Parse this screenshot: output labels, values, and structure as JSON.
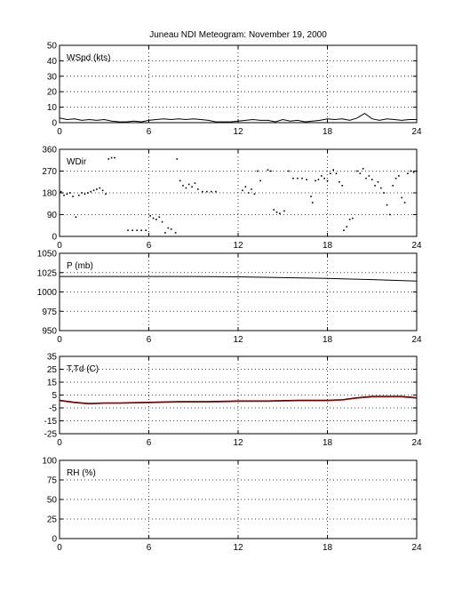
{
  "title": "Juneau NDI Meteogram:  November 19, 2000",
  "chart_data": [
    {
      "type": "line",
      "label": "WSpd (kts)",
      "ylim": [
        0,
        50
      ],
      "yticks": [
        0,
        10,
        20,
        30,
        40,
        50
      ],
      "xlim": [
        0,
        24
      ],
      "xticks": [
        0,
        6,
        12,
        18,
        24
      ],
      "grid": true,
      "series": [
        {
          "color": "#000000",
          "x": [
            0,
            0.5,
            1,
            1.5,
            2,
            2.5,
            3,
            3.5,
            4,
            4.5,
            5,
            5.5,
            6,
            6.5,
            7,
            7.5,
            8,
            8.5,
            9,
            9.5,
            10,
            10.5,
            11,
            11.5,
            12,
            12.5,
            13,
            13.5,
            14,
            14.5,
            15,
            15.5,
            16,
            16.5,
            17,
            17.5,
            18,
            18.5,
            19,
            19.5,
            20,
            20.5,
            21,
            21.5,
            22,
            22.5,
            23,
            23.5,
            24
          ],
          "values": [
            3,
            2,
            2.5,
            1.5,
            2,
            1.5,
            2,
            1,
            0.5,
            0.5,
            1,
            0.5,
            1.5,
            2,
            2.5,
            2,
            2.5,
            2,
            2.5,
            2,
            1.5,
            0.5,
            0.5,
            0.5,
            1,
            1.5,
            2,
            1.5,
            1.5,
            0.5,
            2,
            1,
            1.5,
            0.5,
            1,
            1.5,
            2.5,
            2,
            2.5,
            1.5,
            3,
            6,
            2.5,
            1.5,
            2.5,
            2,
            1.5,
            2,
            2
          ]
        }
      ]
    },
    {
      "type": "scatter",
      "label": "WDir",
      "ylim": [
        0,
        360
      ],
      "yticks": [
        0,
        90,
        180,
        270,
        360
      ],
      "xlim": [
        0,
        24
      ],
      "xticks": [
        0,
        6,
        12,
        18,
        24
      ],
      "grid": true,
      "series": [
        {
          "color": "#000000",
          "x": [
            0.1,
            0.3,
            0.5,
            0.7,
            0.9,
            1.1,
            1.3,
            1.5,
            1.7,
            1.9,
            2.1,
            2.3,
            2.5,
            2.7,
            2.9,
            3.1,
            3.3,
            3.5,
            3.7,
            4.6,
            4.9,
            5.2,
            5.5,
            5.8,
            6.1,
            6.3,
            6.5,
            6.7,
            6.9,
            7.1,
            7.3,
            7.5,
            7.8,
            7.9,
            8.1,
            8.3,
            8.5,
            8.7,
            8.9,
            9.1,
            9.3,
            9.6,
            9.9,
            10.2,
            10.5,
            12.3,
            12.5,
            12.7,
            12.9,
            13.1,
            13.3,
            13.5,
            14,
            14.2,
            14.4,
            14.6,
            14.8,
            15.1,
            15.4,
            15.7,
            16.0,
            16.3,
            16.6,
            16.9,
            17.0,
            17.2,
            17.4,
            17.6,
            17.8,
            18.0,
            18.2,
            18.4,
            18.6,
            18.8,
            19.0,
            19.1,
            19.3,
            19.5,
            19.7,
            20.0,
            20.2,
            20.4,
            20.6,
            20.8,
            21.0,
            21.2,
            21.4,
            21.6,
            21.8,
            22.0,
            22.2,
            22.4,
            22.6,
            22.8,
            23.0,
            23.2,
            23.4,
            23.6,
            23.8,
            24.0
          ],
          "values": [
            185,
            170,
            175,
            180,
            165,
            80,
            170,
            180,
            175,
            180,
            185,
            190,
            195,
            200,
            190,
            175,
            320,
            325,
            325,
            25,
            25,
            25,
            25,
            25,
            85,
            75,
            70,
            80,
            60,
            15,
            35,
            30,
            15,
            320,
            230,
            210,
            200,
            215,
            205,
            220,
            195,
            185,
            185,
            185,
            185,
            190,
            205,
            180,
            195,
            175,
            270,
            230,
            275,
            270,
            110,
            100,
            95,
            105,
            270,
            240,
            240,
            240,
            235,
            165,
            140,
            230,
            235,
            250,
            240,
            230,
            260,
            275,
            260,
            225,
            210,
            25,
            40,
            70,
            75,
            270,
            260,
            280,
            240,
            250,
            235,
            210,
            225,
            200,
            180,
            130,
            90,
            210,
            240,
            250,
            160,
            140,
            260,
            270,
            265,
            270
          ]
        }
      ]
    },
    {
      "type": "line",
      "label": "P (mb)",
      "ylim": [
        950,
        1050
      ],
      "yticks": [
        950,
        975,
        1000,
        1025,
        1050
      ],
      "xlim": [
        0,
        24
      ],
      "xticks": [
        0,
        6,
        12,
        18,
        24
      ],
      "grid": true,
      "series": [
        {
          "color": "#000000",
          "x": [
            0,
            3,
            6,
            9,
            12,
            15,
            18,
            21,
            24
          ],
          "values": [
            1020,
            1020,
            1020,
            1020,
            1019.5,
            1018.5,
            1017.5,
            1016,
            1014
          ]
        }
      ]
    },
    {
      "type": "line",
      "label": "T,Td (C)",
      "ylim": [
        -25,
        35
      ],
      "yticks": [
        -25,
        -15,
        -5,
        5,
        15,
        25,
        35
      ],
      "xlim": [
        0,
        24
      ],
      "xticks": [
        0,
        6,
        12,
        18,
        24
      ],
      "grid": true,
      "series": [
        {
          "color": "#000000",
          "x": [
            0,
            1,
            2,
            3,
            4,
            6,
            8,
            10,
            12,
            14,
            16,
            18,
            19,
            20,
            21,
            22,
            23,
            24
          ],
          "values": [
            1,
            -0.5,
            -1.5,
            -1,
            -1,
            -0.5,
            0,
            0,
            0.5,
            0.5,
            1,
            1,
            1.5,
            3,
            4,
            4,
            4,
            3
          ]
        },
        {
          "color": "#cc0000",
          "x": [
            0,
            1,
            2,
            3,
            4,
            6,
            8,
            10,
            12,
            14,
            16,
            18,
            19,
            20,
            21,
            22,
            23,
            24
          ],
          "values": [
            0.5,
            -1,
            -2,
            -1.5,
            -1.5,
            -1,
            -0.5,
            -0.5,
            0,
            0,
            0.5,
            0.5,
            1,
            2.5,
            3.5,
            3.5,
            3.5,
            2.5
          ]
        }
      ]
    },
    {
      "type": "line",
      "label": "RH (%)",
      "ylim": [
        0,
        100
      ],
      "yticks": [
        0,
        25,
        50,
        75,
        100
      ],
      "xlim": [
        0,
        24
      ],
      "xticks": [
        0,
        6,
        12,
        18,
        24
      ],
      "grid": true,
      "series": []
    }
  ]
}
